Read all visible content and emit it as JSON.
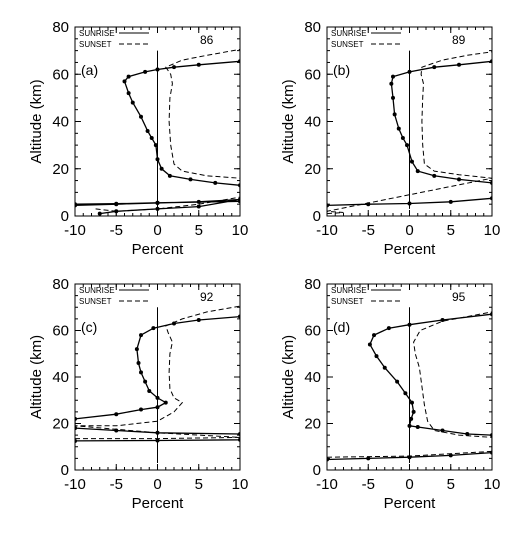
{
  "chart_data": [
    {
      "type": "line",
      "panel_label": "(a)",
      "year_label": "86",
      "xlabel": "Percent",
      "ylabel": "Altitude (km)",
      "xlim": [
        -10,
        10
      ],
      "ylim": [
        0,
        80
      ],
      "x_ticks": [
        "-10",
        "-5",
        "0",
        "5",
        "10"
      ],
      "y_ticks": [
        "0",
        "20",
        "40",
        "60",
        "80"
      ],
      "legend": [
        "SUNRISE",
        "SUNSET"
      ],
      "series": [
        {
          "name": "SUNRISE",
          "style": "solid",
          "markers": true,
          "points": [
            [
              -7.0,
              1
            ],
            [
              -5,
              2
            ],
            [
              0,
              3
            ],
            [
              5,
              4
            ],
            [
              10,
              7
            ],
            [
              5,
              6
            ],
            [
              0,
              5.5
            ],
            [
              -5,
              5
            ],
            [
              -10,
              4.5
            ],
            [
              -10,
              5
            ],
            [
              -5,
              5.2
            ],
            [
              0,
              5.6
            ],
            [
              10,
              6.2
            ],
            [
              10,
              13
            ],
            [
              7,
              14
            ],
            [
              4,
              15.5
            ],
            [
              1.5,
              17
            ],
            [
              0.5,
              20
            ],
            [
              0,
              24
            ],
            [
              -0.2,
              30
            ],
            [
              -0.7,
              33
            ],
            [
              -1.2,
              36
            ],
            [
              -2,
              42
            ],
            [
              -3,
              48
            ],
            [
              -3.5,
              52
            ],
            [
              -4,
              57
            ],
            [
              -3.5,
              59
            ],
            [
              -1.5,
              61
            ],
            [
              0,
              62
            ],
            [
              2,
              63
            ],
            [
              5,
              64
            ],
            [
              10,
              65.5
            ]
          ]
        },
        {
          "name": "SUNSET",
          "style": "dashed",
          "markers": false,
          "points": [
            [
              -7.5,
              3
            ],
            [
              -5,
              2
            ],
            [
              0,
              3
            ],
            [
              5,
              5
            ],
            [
              10,
              8
            ],
            [
              10,
              16
            ],
            [
              6,
              17
            ],
            [
              3,
              19
            ],
            [
              2,
              22
            ],
            [
              1.6,
              30
            ],
            [
              1.4,
              40
            ],
            [
              1.5,
              50
            ],
            [
              1.8,
              56
            ],
            [
              1.6,
              60
            ],
            [
              1,
              63
            ],
            [
              3,
              66
            ],
            [
              6,
              68
            ],
            [
              10,
              70.5
            ]
          ]
        }
      ]
    },
    {
      "type": "line",
      "panel_label": "(b)",
      "year_label": "89",
      "xlabel": "Percent",
      "ylabel": "Altitude (km)",
      "xlim": [
        -10,
        10
      ],
      "ylim": [
        0,
        80
      ],
      "x_ticks": [
        "-10",
        "-5",
        "0",
        "5",
        "10"
      ],
      "y_ticks": [
        "0",
        "20",
        "40",
        "60",
        "80"
      ],
      "legend": [
        "SUNRISE",
        "SUNSET"
      ],
      "series": [
        {
          "name": "SUNRISE",
          "style": "solid",
          "markers": true,
          "points": [
            [
              -10,
              4.5
            ],
            [
              -5,
              5
            ],
            [
              0,
              5.3
            ],
            [
              5,
              6
            ],
            [
              10,
              7.5
            ],
            [
              10,
              14
            ],
            [
              6,
              15.5
            ],
            [
              3,
              17
            ],
            [
              1,
              19
            ],
            [
              0.3,
              23
            ],
            [
              -0.3,
              30
            ],
            [
              -0.8,
              33
            ],
            [
              -1.3,
              37
            ],
            [
              -1.8,
              43
            ],
            [
              -2,
              50
            ],
            [
              -2.2,
              56
            ],
            [
              -2,
              59
            ],
            [
              0,
              61
            ],
            [
              3,
              63
            ],
            [
              6,
              64
            ],
            [
              10,
              65.5
            ]
          ]
        },
        {
          "name": "SUNSET",
          "style": "dashed",
          "markers": false,
          "points": [
            [
              -10,
              1
            ],
            [
              -8,
              1.5
            ],
            [
              -10,
              2
            ],
            [
              10,
              16
            ],
            [
              6,
              17.5
            ],
            [
              3,
              19
            ],
            [
              1.8,
              22
            ],
            [
              1.6,
              30
            ],
            [
              1.5,
              40
            ],
            [
              1.6,
              50
            ],
            [
              1.7,
              56
            ],
            [
              1.4,
              60
            ],
            [
              1.5,
              63
            ],
            [
              4,
              66
            ],
            [
              7,
              68
            ],
            [
              10,
              69.5
            ]
          ]
        }
      ]
    },
    {
      "type": "line",
      "panel_label": "(c)",
      "year_label": "92",
      "xlabel": "Percent",
      "ylabel": "Altitude (km)",
      "xlim": [
        -10,
        10
      ],
      "ylim": [
        0,
        80
      ],
      "x_ticks": [
        "-10",
        "-5",
        "0",
        "5",
        "10"
      ],
      "y_ticks": [
        "0",
        "20",
        "40",
        "60",
        "80"
      ],
      "legend": [
        "SUNRISE",
        "SUNSET"
      ],
      "series": [
        {
          "name": "SUNRISE",
          "style": "solid",
          "markers": true,
          "points": [
            [
              -10,
              12.5
            ],
            [
              0,
              12.7
            ],
            [
              10,
              13
            ],
            [
              10,
              15.5
            ],
            [
              0,
              16
            ],
            [
              -5,
              17
            ],
            [
              -10,
              18
            ],
            [
              -10,
              22
            ],
            [
              -5,
              24
            ],
            [
              -2,
              26
            ],
            [
              0,
              27
            ],
            [
              1,
              29
            ],
            [
              0,
              31
            ],
            [
              -1,
              34
            ],
            [
              -1.5,
              38
            ],
            [
              -2,
              42
            ],
            [
              -2.3,
              46
            ],
            [
              -2.5,
              52
            ],
            [
              -2,
              58
            ],
            [
              -0.5,
              61
            ],
            [
              2,
              63
            ],
            [
              5,
              64.5
            ],
            [
              10,
              66
            ]
          ]
        },
        {
          "name": "SUNSET",
          "style": "dashed",
          "markers": false,
          "points": [
            [
              -10,
              13.5
            ],
            [
              0,
              13.5
            ],
            [
              10,
              14
            ],
            [
              5,
              15
            ],
            [
              0,
              16
            ],
            [
              -5,
              17.5
            ],
            [
              -10,
              19
            ],
            [
              -5,
              19
            ],
            [
              0,
              21
            ],
            [
              2,
              25
            ],
            [
              3,
              29
            ],
            [
              2,
              31
            ],
            [
              1.5,
              35
            ],
            [
              1.4,
              42
            ],
            [
              1.5,
              50
            ],
            [
              1.8,
              55
            ],
            [
              1.3,
              59
            ],
            [
              1,
              62
            ],
            [
              3,
              65
            ],
            [
              6,
              68
            ],
            [
              10,
              70.5
            ]
          ]
        }
      ]
    },
    {
      "type": "line",
      "panel_label": "(d)",
      "year_label": "95",
      "xlabel": "Percent",
      "ylabel": "Altitude (km)",
      "xlim": [
        -10,
        10
      ],
      "ylim": [
        0,
        80
      ],
      "x_ticks": [
        "-10",
        "-5",
        "0",
        "5",
        "10"
      ],
      "y_ticks": [
        "0",
        "20",
        "40",
        "60",
        "80"
      ],
      "legend": [
        "SUNRISE",
        "SUNSET"
      ],
      "series": [
        {
          "name": "SUNRISE",
          "style": "solid",
          "markers": true,
          "points": [
            [
              -10,
              4.5
            ],
            [
              -5,
              5
            ],
            [
              0,
              5.5
            ],
            [
              5,
              6.3
            ],
            [
              10,
              7.5
            ],
            [
              10,
              15
            ],
            [
              7,
              15.5
            ],
            [
              4,
              17
            ],
            [
              1,
              18.5
            ],
            [
              0,
              19
            ],
            [
              0.2,
              22
            ],
            [
              0.5,
              25
            ],
            [
              0.3,
              29
            ],
            [
              -0.5,
              33
            ],
            [
              -1.5,
              38
            ],
            [
              -3,
              44
            ],
            [
              -4,
              49
            ],
            [
              -4.8,
              54
            ],
            [
              -4.3,
              58
            ],
            [
              -2.5,
              61
            ],
            [
              0,
              62.5
            ],
            [
              4,
              64.5
            ],
            [
              10,
              67
            ]
          ]
        },
        {
          "name": "SUNSET",
          "style": "dashed",
          "markers": false,
          "points": [
            [
              -10,
              5.5
            ],
            [
              0,
              6
            ],
            [
              5,
              7
            ],
            [
              10,
              8
            ],
            [
              10,
              14
            ],
            [
              6,
              15
            ],
            [
              3,
              17
            ],
            [
              2.2,
              21
            ],
            [
              1.8,
              28
            ],
            [
              1.5,
              36
            ],
            [
              1.2,
              44
            ],
            [
              0.7,
              50
            ],
            [
              0.5,
              55
            ],
            [
              1.3,
              60
            ],
            [
              4,
              64
            ],
            [
              7,
              66
            ],
            [
              10,
              68
            ]
          ]
        }
      ]
    }
  ]
}
